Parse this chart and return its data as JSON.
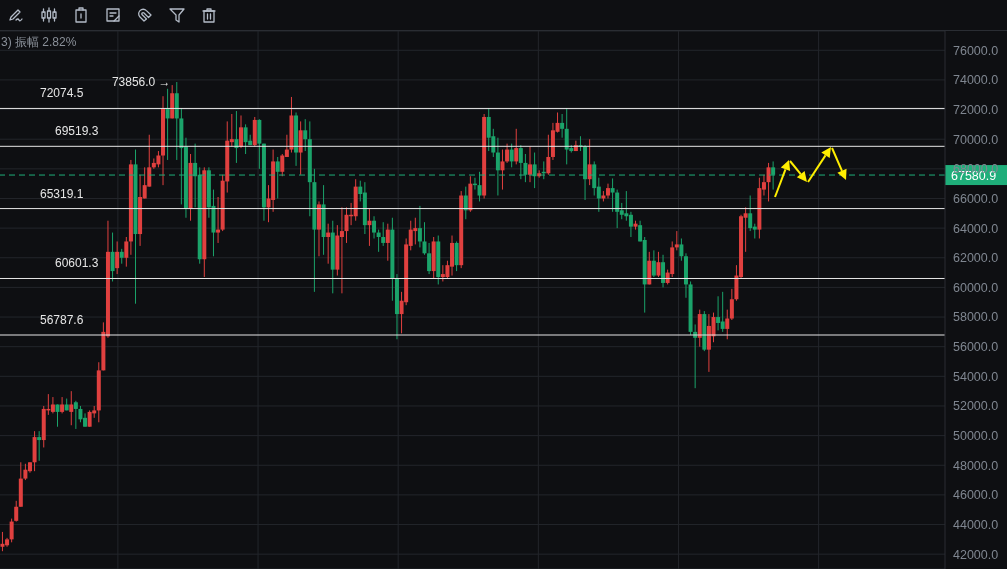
{
  "chart_data": {
    "type": "candlestick",
    "annotations": [
      "3) 振幅 2.82%",
      "73856.0 →"
    ],
    "categories": [
      null,
      null,
      null,
      null,
      null,
      null,
      null,
      null,
      null,
      null,
      null,
      null,
      null,
      null,
      null,
      null,
      null,
      null,
      null,
      null,
      null,
      null,
      null,
      null,
      null,
      null,
      null,
      null,
      null,
      null,
      null,
      null,
      null,
      null,
      null,
      null,
      null,
      null,
      null,
      null,
      null,
      null,
      null,
      null,
      null,
      null,
      null,
      null,
      null,
      null,
      null,
      null,
      null,
      null,
      null,
      null,
      null,
      null,
      null,
      null,
      null,
      null,
      null,
      null,
      null,
      null,
      null,
      null,
      null,
      null,
      null,
      null,
      null,
      null,
      null,
      null,
      null,
      null,
      null,
      null,
      null,
      null,
      null,
      null,
      null,
      null,
      null,
      null,
      null,
      null,
      null,
      null,
      null,
      null,
      null,
      null,
      null,
      null,
      null,
      null,
      null,
      null,
      null,
      null,
      null,
      null,
      null,
      null,
      null,
      null,
      null,
      null,
      null,
      null,
      null,
      null,
      null,
      null,
      null,
      null,
      null,
      null,
      null,
      null,
      null,
      null,
      null,
      null,
      null,
      null,
      null,
      null,
      null,
      null,
      null,
      null,
      null,
      null,
      null,
      null,
      null,
      null,
      null,
      null,
      null,
      null,
      null,
      null,
      null,
      null,
      null,
      null,
      null,
      null,
      null,
      null,
      null,
      null,
      null,
      null,
      null,
      null,
      null,
      null,
      null,
      null,
      null,
      null,
      null,
      null,
      null,
      null,
      null,
      null,
      null,
      null,
      null,
      null,
      null,
      null,
      null,
      null,
      null,
      null,
      null,
      null,
      null,
      null,
      null,
      null,
      null,
      null,
      null,
      null,
      null,
      null,
      null,
      null,
      null,
      null,
      null,
      null,
      null,
      null,
      null,
      null
    ],
    "ohlc": [
      [
        42500,
        43500,
        42200,
        42700
      ],
      [
        42600,
        43100,
        42500,
        43000
      ],
      [
        43000,
        44400,
        42800,
        44200
      ],
      [
        44250,
        45600,
        44200,
        45200
      ],
      [
        45200,
        48200,
        45200,
        47100
      ],
      [
        47100,
        48100,
        47000,
        47700
      ],
      [
        47600,
        48200,
        47500,
        48200
      ],
      [
        48200,
        50300,
        47600,
        49900
      ],
      [
        49900,
        50300,
        48300,
        49700
      ],
      [
        49700,
        52000,
        49200,
        51800
      ],
      [
        51700,
        52800,
        51400,
        51800
      ],
      [
        51600,
        52600,
        51500,
        52100
      ],
      [
        52100,
        52100,
        50600,
        51600
      ],
      [
        51600,
        52600,
        51500,
        52100
      ],
      [
        52100,
        52500,
        51700,
        51700
      ],
      [
        51600,
        53000,
        50700,
        52100
      ],
      [
        52250,
        52350,
        50450,
        51800
      ],
      [
        51800,
        52000,
        50900,
        51100
      ],
      [
        51200,
        51500,
        50600,
        50600
      ],
      [
        50600,
        51700,
        50600,
        51600
      ],
      [
        51500,
        52000,
        51200,
        51700
      ],
      [
        51700,
        54950,
        50900,
        54400
      ],
      [
        54400,
        57640,
        54400,
        57000
      ],
      [
        56700,
        64500,
        56600,
        62400
      ],
      [
        62400,
        63700,
        60400,
        61100
      ],
      [
        61300,
        63100,
        60900,
        62400
      ],
      [
        62400,
        62600,
        61600,
        62000
      ],
      [
        62000,
        63400,
        61400,
        63100
      ],
      [
        63100,
        68600,
        62200,
        68300
      ],
      [
        68300,
        69300,
        58900,
        63600
      ],
      [
        63600,
        67600,
        62800,
        66100
      ],
      [
        66000,
        68100,
        66000,
        66900
      ],
      [
        66800,
        70300,
        66800,
        68100
      ],
      [
        68100,
        68700,
        68000,
        68400
      ],
      [
        68300,
        69200,
        68100,
        68900
      ],
      [
        68900,
        72900,
        66900,
        72100
      ],
      [
        72100,
        73400,
        68600,
        71400
      ],
      [
        71400,
        73650,
        71400,
        73100
      ],
      [
        73100,
        73856,
        68600,
        71400
      ],
      [
        71400,
        72100,
        65600,
        69400
      ],
      [
        69500,
        70100,
        64700,
        65300
      ],
      [
        65300,
        69000,
        64500,
        68400
      ],
      [
        68400,
        69700,
        65400,
        67500
      ],
      [
        67600,
        68100,
        61600,
        61900
      ],
      [
        61900,
        68100,
        60700,
        67900
      ],
      [
        67900,
        68100,
        64700,
        65400
      ],
      [
        65500,
        66600,
        62100,
        63700
      ],
      [
        63700,
        66100,
        63000,
        63900
      ],
      [
        63900,
        67600,
        63800,
        67200
      ],
      [
        67150,
        71200,
        66400,
        69900
      ],
      [
        69800,
        71700,
        69500,
        70000
      ],
      [
        70000,
        71900,
        68400,
        69400
      ],
      [
        69500,
        71600,
        69400,
        70800
      ],
      [
        70800,
        71000,
        69000,
        69800
      ],
      [
        69900,
        70300,
        69600,
        69600
      ],
      [
        69600,
        71500,
        69500,
        71300
      ],
      [
        71300,
        71350,
        68000,
        69700
      ],
      [
        69700,
        69700,
        64500,
        65400
      ],
      [
        65400,
        66900,
        64400,
        66000
      ],
      [
        65900,
        69300,
        65100,
        68500
      ],
      [
        68500,
        68800,
        66000,
        67800
      ],
      [
        67800,
        69000,
        67500,
        68900
      ],
      [
        68800,
        70300,
        68800,
        69300
      ],
      [
        69300,
        72850,
        69100,
        71600
      ],
      [
        71600,
        71800,
        68200,
        69100
      ],
      [
        69100,
        71200,
        67600,
        70600
      ],
      [
        70600,
        71350,
        69200,
        70000
      ],
      [
        70000,
        71200,
        64800,
        67100
      ],
      [
        67100,
        68000,
        59700,
        63900
      ],
      [
        63900,
        65800,
        62100,
        65600
      ],
      [
        65600,
        66900,
        62200,
        63400
      ],
      [
        63400,
        64300,
        61600,
        63700
      ],
      [
        63700,
        64500,
        59600,
        61200
      ],
      [
        61200,
        64200,
        60800,
        63500
      ],
      [
        63400,
        65400,
        59600,
        63800
      ],
      [
        63800,
        65400,
        63000,
        64900
      ],
      [
        64800,
        65700,
        64200,
        64900
      ],
      [
        64800,
        67300,
        64500,
        66800
      ],
      [
        66800,
        67200,
        65800,
        66300
      ],
      [
        66400,
        67100,
        63600,
        64200
      ],
      [
        64200,
        65300,
        62800,
        64500
      ],
      [
        64500,
        64800,
        63300,
        63700
      ],
      [
        63700,
        63900,
        62400,
        63400
      ],
      [
        63400,
        64400,
        62800,
        63000
      ],
      [
        63000,
        64300,
        61800,
        63900
      ],
      [
        63900,
        64700,
        59100,
        60600
      ],
      [
        60600,
        60900,
        56500,
        58200
      ],
      [
        58200,
        59700,
        56900,
        59100
      ],
      [
        59000,
        63300,
        58800,
        62900
      ],
      [
        62800,
        64500,
        62500,
        63900
      ],
      [
        63800,
        64700,
        62900,
        64000
      ],
      [
        64000,
        65500,
        62700,
        63100
      ],
      [
        63100,
        64400,
        62200,
        62300
      ],
      [
        62300,
        63000,
        60900,
        61100
      ],
      [
        61100,
        63400,
        60600,
        63100
      ],
      [
        63100,
        63500,
        60200,
        60700
      ],
      [
        60700,
        61500,
        60400,
        60900
      ],
      [
        60700,
        61800,
        60600,
        61500
      ],
      [
        61400,
        63500,
        60800,
        63000
      ],
      [
        63000,
        63100,
        61100,
        61500
      ],
      [
        61500,
        66500,
        61300,
        66200
      ],
      [
        66200,
        66800,
        64600,
        65200
      ],
      [
        65200,
        67500,
        65100,
        67000
      ],
      [
        67000,
        67400,
        66600,
        66900
      ],
      [
        66900,
        67800,
        65800,
        66200
      ],
      [
        66200,
        71700,
        66000,
        71500
      ],
      [
        71500,
        72100,
        69200,
        70100
      ],
      [
        70200,
        70700,
        68800,
        69100
      ],
      [
        69100,
        70100,
        66200,
        67900
      ],
      [
        67900,
        69300,
        66600,
        68500
      ],
      [
        68500,
        69700,
        68400,
        69300
      ],
      [
        69300,
        69700,
        68100,
        68500
      ],
      [
        68500,
        70700,
        68300,
        69400
      ],
      [
        69400,
        69600,
        67300,
        68400
      ],
      [
        68400,
        69000,
        67100,
        67600
      ],
      [
        67600,
        69500,
        67100,
        68300
      ],
      [
        68300,
        69100,
        66700,
        67500
      ],
      [
        67500,
        67900,
        67400,
        67700
      ],
      [
        67800,
        68500,
        67300,
        67700
      ],
      [
        67700,
        70300,
        67600,
        68800
      ],
      [
        68800,
        71100,
        68600,
        70600
      ],
      [
        70500,
        71800,
        70450,
        71100
      ],
      [
        71100,
        71700,
        70100,
        70700
      ],
      [
        70700,
        72100,
        68300,
        69300
      ],
      [
        69400,
        69600,
        69100,
        69200
      ],
      [
        69200,
        69900,
        69200,
        69600
      ],
      [
        69600,
        70200,
        69200,
        69500
      ],
      [
        69500,
        69600,
        65900,
        67300
      ],
      [
        67300,
        70000,
        66900,
        68300
      ],
      [
        68300,
        68500,
        66200,
        66700
      ],
      [
        66800,
        67400,
        65100,
        66000
      ],
      [
        66000,
        66500,
        65800,
        66200
      ],
      [
        66200,
        67000,
        66000,
        66700
      ],
      [
        66700,
        67350,
        65100,
        66400
      ],
      [
        66400,
        66600,
        64000,
        65100
      ],
      [
        65200,
        65700,
        64600,
        64900
      ],
      [
        65000,
        66500,
        64500,
        64800
      ],
      [
        64900,
        65100,
        63400,
        64100
      ],
      [
        64100,
        64500,
        63900,
        64300
      ],
      [
        64200,
        64500,
        63100,
        63100
      ],
      [
        63200,
        63400,
        58300,
        60200
      ],
      [
        60200,
        62400,
        60200,
        61800
      ],
      [
        61800,
        62500,
        60700,
        60800
      ],
      [
        60800,
        62400,
        60700,
        61700
      ],
      [
        61700,
        62200,
        60000,
        60300
      ],
      [
        60300,
        61200,
        60200,
        61000
      ],
      [
        60900,
        63100,
        60700,
        62700
      ],
      [
        62700,
        63800,
        62500,
        62900
      ],
      [
        62900,
        63300,
        61800,
        62100
      ],
      [
        62100,
        62300,
        59300,
        60200
      ],
      [
        60200,
        60400,
        56800,
        57000
      ],
      [
        57000,
        57500,
        53200,
        56600
      ],
      [
        56600,
        58500,
        56000,
        58200
      ],
      [
        58200,
        58400,
        55700,
        55800
      ],
      [
        55800,
        58200,
        54300,
        57400
      ],
      [
        56700,
        58300,
        56300,
        58000
      ],
      [
        58000,
        59400,
        57100,
        57600
      ],
      [
        57700,
        59700,
        57000,
        57200
      ],
      [
        57200,
        58500,
        56500,
        57900
      ],
      [
        57900,
        59900,
        57800,
        59200
      ],
      [
        59200,
        61500,
        59100,
        60800
      ],
      [
        60700,
        64900,
        60600,
        64800
      ],
      [
        64700,
        65400,
        62400,
        65000
      ],
      [
        65000,
        66200,
        63800,
        64000
      ],
      [
        64100,
        64300,
        63300,
        63900
      ],
      [
        63900,
        67400,
        63300,
        66700
      ],
      [
        66600,
        67600,
        66200,
        67100
      ],
      [
        67100,
        68400,
        65800,
        68100
      ],
      [
        68100,
        68500,
        66600,
        67600
      ],
      null,
      null,
      null,
      null,
      null,
      null,
      null,
      null,
      null,
      null,
      null,
      null,
      null,
      null,
      null,
      null,
      null,
      null,
      null,
      null,
      null,
      null,
      null,
      null,
      null,
      null,
      null,
      null,
      null,
      null,
      null,
      null,
      null,
      null,
      null,
      null,
      null
    ],
    "colors": [
      "#e0403f",
      "#e0403f",
      "#e0403f",
      "#e0403f",
      "#e0403f",
      "#e0403f",
      "#e0403f",
      "#e0403f",
      "#1ba36a",
      "#e0403f",
      "#e0403f",
      "#e0403f",
      "#1ba36a",
      "#e0403f",
      "#1ba36a",
      "#e0403f",
      "#1ba36a",
      "#1ba36a",
      "#1ba36a",
      "#e0403f",
      "#e0403f",
      "#e0403f",
      "#e0403f",
      "#e0403f",
      "#1ba36a",
      "#e0403f",
      "#1ba36a",
      "#e0403f",
      "#e0403f",
      "#1ba36a",
      "#e0403f",
      "#e0403f",
      "#e0403f",
      "#e0403f",
      "#e0403f",
      "#e0403f",
      "#1ba36a",
      "#e0403f",
      "#1ba36a",
      "#1ba36a",
      "#1ba36a",
      "#e0403f",
      "#1ba36a",
      "#1ba36a",
      "#e0403f",
      "#1ba36a",
      "#1ba36a",
      "#e0403f",
      "#e0403f",
      "#e0403f",
      "#e0403f",
      "#1ba36a",
      "#e0403f",
      "#1ba36a",
      "#1ba36a",
      "#e0403f",
      "#1ba36a",
      "#1ba36a",
      "#e0403f",
      "#e0403f",
      "#1ba36a",
      "#e0403f",
      "#e0403f",
      "#e0403f",
      "#1ba36a",
      "#e0403f",
      "#1ba36a",
      "#1ba36a",
      "#1ba36a",
      "#e0403f",
      "#1ba36a",
      "#e0403f",
      "#1ba36a",
      "#e0403f",
      "#e0403f",
      "#e0403f",
      "#e0403f",
      "#e0403f",
      "#1ba36a",
      "#1ba36a",
      "#e0403f",
      "#1ba36a",
      "#1ba36a",
      "#1ba36a",
      "#e0403f",
      "#1ba36a",
      "#1ba36a",
      "#e0403f",
      "#e0403f",
      "#e0403f",
      "#e0403f",
      "#1ba36a",
      "#1ba36a",
      "#1ba36a",
      "#e0403f",
      "#1ba36a",
      "#e0403f",
      "#e0403f",
      "#e0403f",
      "#1ba36a",
      "#e0403f",
      "#1ba36a",
      "#e0403f",
      "#1ba36a",
      "#1ba36a",
      "#e0403f",
      "#1ba36a",
      "#1ba36a",
      "#1ba36a",
      "#e0403f",
      "#e0403f",
      "#1ba36a",
      "#e0403f",
      "#1ba36a",
      "#1ba36a",
      "#e0403f",
      "#1ba36a",
      "#e0403f",
      "#1ba36a",
      "#e0403f",
      "#e0403f",
      "#e0403f",
      "#1ba36a",
      "#1ba36a",
      "#1ba36a",
      "#e0403f",
      "#1ba36a",
      "#1ba36a",
      "#e0403f",
      "#1ba36a",
      "#1ba36a",
      "#e0403f",
      "#e0403f",
      "#1ba36a",
      "#1ba36a",
      "#1ba36a",
      "#1ba36a",
      "#1ba36a",
      "#e0403f",
      "#1ba36a",
      "#1ba36a",
      "#e0403f",
      "#1ba36a",
      "#e0403f",
      "#1ba36a",
      "#e0403f",
      "#e0403f",
      "#e0403f",
      "#1ba36a",
      "#1ba36a",
      "#1ba36a",
      "#1ba36a",
      "#e0403f",
      "#1ba36a",
      "#e0403f",
      "#e0403f",
      "#1ba36a",
      "#1ba36a",
      "#e0403f",
      "#e0403f",
      "#e0403f",
      "#e0403f",
      "#e0403f",
      "#1ba36a",
      "#1ba36a",
      "#e0403f",
      "#e0403f",
      "#e0403f",
      "#1ba36a",
      null,
      null,
      null,
      null,
      null,
      null,
      null,
      null,
      null,
      null,
      null,
      null,
      null,
      null,
      null,
      null,
      null,
      null,
      null,
      null,
      null,
      null,
      null,
      null,
      null,
      null,
      null,
      null,
      null,
      null,
      null,
      null,
      null,
      null,
      null,
      null,
      null
    ],
    "ylim": [
      41000,
      77300
    ],
    "yticks": [
      {
        "value": 42000,
        "label": "42000.0"
      },
      {
        "value": 44000,
        "label": "44000.0"
      },
      {
        "value": 46000,
        "label": "46000.0"
      },
      {
        "value": 48000,
        "label": "48000.0"
      },
      {
        "value": 50000,
        "label": "50000.0"
      },
      {
        "value": 52000,
        "label": "52000.0"
      },
      {
        "value": 54000,
        "label": "54000.0"
      },
      {
        "value": 56000,
        "label": "56000.0"
      },
      {
        "value": 58000,
        "label": "58000.0"
      },
      {
        "value": 60000,
        "label": "60000.0"
      },
      {
        "value": 62000,
        "label": "62000.0"
      },
      {
        "value": 64000,
        "label": "64000.0"
      },
      {
        "value": 66000,
        "label": "66000.0"
      },
      {
        "value": 68000,
        "label": "68000.0"
      },
      {
        "value": 70000,
        "label": "70000.0"
      },
      {
        "value": 72000,
        "label": "72000.0"
      },
      {
        "value": 74000,
        "label": "74000.0"
      },
      {
        "value": 76000,
        "label": "76000.0"
      }
    ],
    "ref_lines": [
      {
        "axis": "y",
        "value": 72074.5,
        "label": "72074.5",
        "color": "#e6e6e6"
      },
      {
        "axis": "y",
        "value": 69519.3,
        "label": "69519.3",
        "color": "#e6e6e6"
      },
      {
        "axis": "y",
        "value": 65319.1,
        "label": "65319.1",
        "color": "#e6e6e6"
      },
      {
        "axis": "y",
        "value": 60601.3,
        "label": "60601.3",
        "color": "#e6e6e6"
      },
      {
        "axis": "y",
        "value": 56787.6,
        "label": "56787.6",
        "color": "#e6e6e6"
      },
      {
        "axis": "y",
        "value": 67580.9,
        "label": "67580.9",
        "color": "#1fae7a",
        "line_style": "dashed"
      }
    ],
    "grid": true,
    "tick_labels": "y"
  }
}
